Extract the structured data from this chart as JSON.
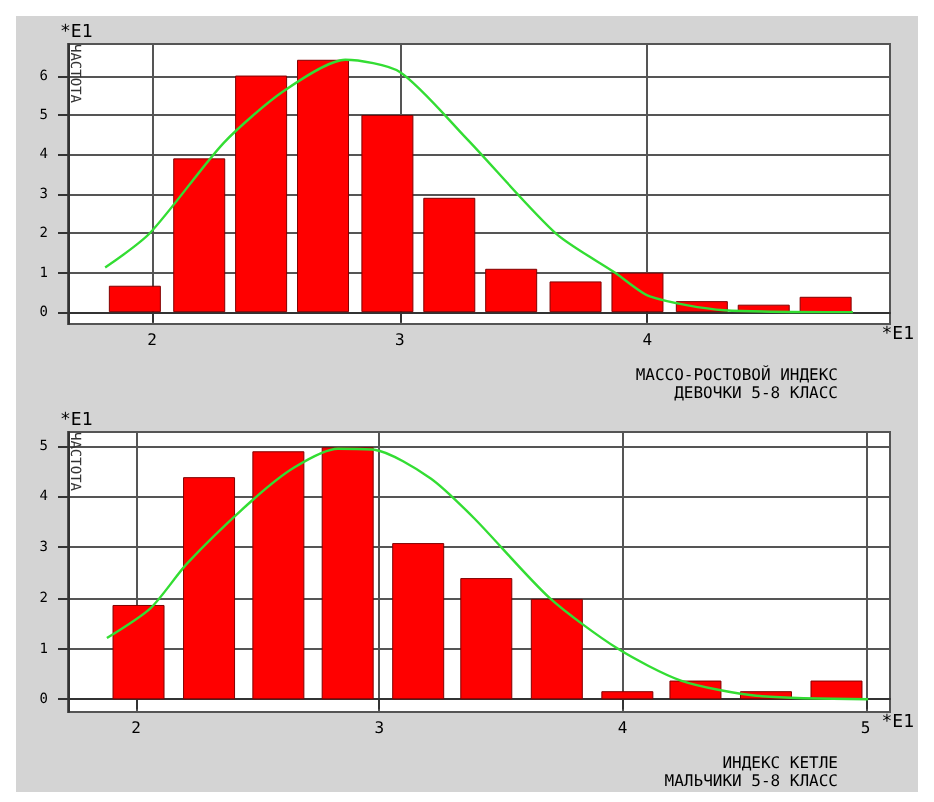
{
  "chart_data": [
    {
      "type": "bar",
      "xlabel": "МАССО-РОСТОВОЙ ИНДЕКС\nДЕВОЧКИ 5-8 КЛАСС",
      "ylabel": "ЧАСТОТА",
      "annotations": [
        "*E1",
        "*E1"
      ],
      "x": [
        1.93,
        2.19,
        2.44,
        2.69,
        2.95,
        3.2,
        3.45,
        3.71,
        3.96,
        4.22,
        4.47,
        4.72
      ],
      "series": [
        {
          "color": "#ff0000",
          "values": [
            0.67,
            3.9,
            6.0,
            6.4,
            5.0,
            2.9,
            1.1,
            0.78,
            1.0,
            0.28,
            0.19,
            0.39
          ]
        },
        {
          "type": "line",
          "color": "#33dd33",
          "x": [
            1.81,
            1.99,
            2.29,
            2.53,
            2.78,
            3.0,
            3.27,
            3.63,
            3.87,
            4.01,
            4.31,
            4.83
          ],
          "values": [
            1.13,
            2.0,
            4.3,
            5.6,
            6.4,
            6.09,
            4.4,
            2.0,
            1.0,
            0.4,
            0.05,
            0
          ]
        }
      ],
      "xlim": [
        1.66,
        4.98
      ],
      "xticks": [
        2,
        3,
        4
      ],
      "ylim": [
        -0.3,
        6.8
      ],
      "yticks": [
        0,
        1,
        2,
        3,
        4,
        5,
        6
      ],
      "grid": true,
      "marker": "none"
    },
    {
      "type": "bar",
      "xlabel": "ИНДЕКС КЕТЛЕ\nМАЛЬЧИКИ 5-8 КЛАСС",
      "ylabel": "ЧАСТОТА",
      "annotations": [
        "*E1",
        "*E1"
      ],
      "x": [
        2.01,
        2.3,
        2.585,
        2.87,
        3.16,
        3.44,
        3.73,
        4.02,
        4.3,
        4.59,
        4.88
      ],
      "series": [
        {
          "color": "#ff0000",
          "values": [
            1.86,
            4.38,
            4.89,
            4.97,
            3.08,
            2.39,
            1.98,
            0.16,
            0.37,
            0.16,
            0.37
          ]
        },
        {
          "type": "line",
          "color": "#33dd33",
          "x": [
            1.88,
            2.06,
            2.21,
            2.47,
            2.65,
            2.83,
            2.98,
            3.21,
            3.39,
            3.7,
            3.98,
            4.24,
            4.55,
            5.01
          ],
          "values": [
            1.21,
            1.8,
            2.68,
            3.89,
            4.57,
            4.94,
            4.92,
            4.36,
            3.57,
            2.0,
            1.0,
            0.37,
            0.07,
            0
          ]
        }
      ],
      "xlim": [
        1.72,
        5.1
      ],
      "xticks": [
        2,
        3,
        4,
        5
      ],
      "ylim": [
        -0.25,
        5.27
      ],
      "yticks": [
        0,
        1,
        2,
        3,
        4,
        5
      ],
      "grid": true,
      "marker": "none"
    }
  ]
}
